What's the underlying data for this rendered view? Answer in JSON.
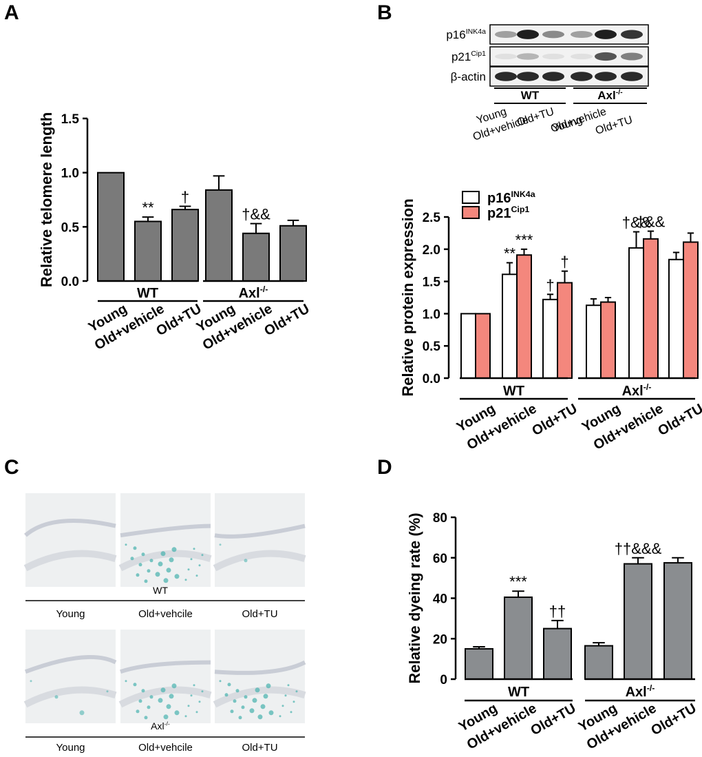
{
  "panels": {
    "a": "A",
    "b": "B",
    "c": "C",
    "d": "D"
  },
  "colors": {
    "grey_bar": "#7a7a7a",
    "grey_bar_d": "#8a8d90",
    "p16_fill": "#ffffff",
    "p21_fill": "#f4877d"
  },
  "chart_data": [
    {
      "id": "A",
      "type": "bar",
      "ylabel": "Relative telomere length",
      "ylim": [
        0,
        1.5
      ],
      "yticks": [
        "0.0",
        "0.5",
        "1.0",
        "1.5"
      ],
      "categories": [
        "Young",
        "Old+vehicle",
        "Old+TU",
        "Young",
        "Old+vehicle",
        "Old+TU"
      ],
      "groups": [
        {
          "name": "WT",
          "sup": ""
        },
        {
          "name": "Axl",
          "sup": "-/-"
        }
      ],
      "series": [
        {
          "name": "Relative telomere length",
          "values": [
            1.0,
            0.55,
            0.66,
            0.84,
            0.44,
            0.51
          ],
          "errors": [
            0.0,
            0.04,
            0.03,
            0.13,
            0.09,
            0.05
          ]
        }
      ],
      "annotations": [
        "",
        "**",
        "†",
        "",
        "†&&",
        ""
      ]
    },
    {
      "id": "B",
      "type": "bar",
      "ylabel": "Relative protein expression",
      "ylim": [
        0,
        2.5
      ],
      "yticks": [
        "0.0",
        "0.5",
        "1.0",
        "1.5",
        "2.0",
        "2.5"
      ],
      "categories": [
        "Young",
        "Old+vehicle",
        "Old+TU",
        "Young",
        "Old+vehicle",
        "Old+TU"
      ],
      "groups": [
        {
          "name": "WT",
          "sup": ""
        },
        {
          "name": "Axl",
          "sup": "-/-"
        }
      ],
      "legend": [
        {
          "name": "p16",
          "sup": "INK4a"
        },
        {
          "name": "p21",
          "sup": "Cip1"
        }
      ],
      "series": [
        {
          "name": "p16INK4a",
          "values": [
            1.0,
            1.61,
            1.22,
            1.13,
            2.02,
            1.84
          ],
          "errors": [
            0.0,
            0.18,
            0.08,
            0.1,
            0.25,
            0.11
          ]
        },
        {
          "name": "p21Cip1",
          "values": [
            1.0,
            1.91,
            1.48,
            1.18,
            2.16,
            2.11
          ],
          "errors": [
            0.0,
            0.09,
            0.18,
            0.07,
            0.12,
            0.14
          ]
        }
      ],
      "annotations": [
        [
          "",
          ""
        ],
        [
          "**",
          "***"
        ],
        [
          "†",
          "†"
        ],
        [
          "",
          ""
        ],
        [
          "†&&",
          "†&&"
        ],
        [
          "",
          ""
        ]
      ]
    },
    {
      "id": "D",
      "type": "bar",
      "ylabel": "Relative dyeing rate (%)",
      "ylim": [
        0,
        80
      ],
      "yticks": [
        "0",
        "20",
        "40",
        "60",
        "80"
      ],
      "categories": [
        "Young",
        "Old+vehicle",
        "Old+TU",
        "Young",
        "Old+vehicle",
        "Old+TU"
      ],
      "groups": [
        {
          "name": "WT",
          "sup": ""
        },
        {
          "name": "Axl",
          "sup": "-/-"
        }
      ],
      "series": [
        {
          "name": "Relative dyeing rate",
          "values": [
            15,
            40.5,
            25,
            16.5,
            57,
            57.5
          ],
          "errors": [
            1,
            3,
            4,
            1.5,
            3,
            2.5
          ]
        }
      ],
      "annotations": [
        "",
        "***",
        "††",
        "",
        "††&&&",
        ""
      ]
    }
  ],
  "western_blot": {
    "rows": [
      {
        "name": "p16",
        "sup": "INK4a"
      },
      {
        "name": "p21",
        "sup": "Cip1"
      },
      {
        "name": "β-actin",
        "sup": ""
      }
    ],
    "groups": [
      {
        "name": "WT",
        "sup": ""
      },
      {
        "name": "Axl",
        "sup": "-/-"
      }
    ],
    "lanes": [
      "Young",
      "Old+vehicle",
      "Old+TU",
      "Young",
      "Old+vehicle",
      "Old+TU"
    ],
    "band_intensity": [
      [
        0.35,
        0.95,
        0.45,
        0.35,
        0.95,
        0.85
      ],
      [
        0.05,
        0.25,
        0.05,
        0.05,
        0.7,
        0.5
      ],
      [
        0.9,
        0.9,
        0.9,
        0.9,
        0.9,
        0.9
      ]
    ]
  },
  "histology": {
    "rows": [
      {
        "group": "WT",
        "sup": "",
        "labels": [
          "Young",
          "Old+vehcile",
          "Old+TU"
        ]
      },
      {
        "group": "Axl",
        "sup": "-/-",
        "labels": [
          "Young",
          "Old+vehcile",
          "Old+TU"
        ]
      }
    ],
    "stain_level": [
      [
        0.0,
        0.6,
        0.05
      ],
      [
        0.1,
        0.55,
        0.6
      ]
    ]
  }
}
